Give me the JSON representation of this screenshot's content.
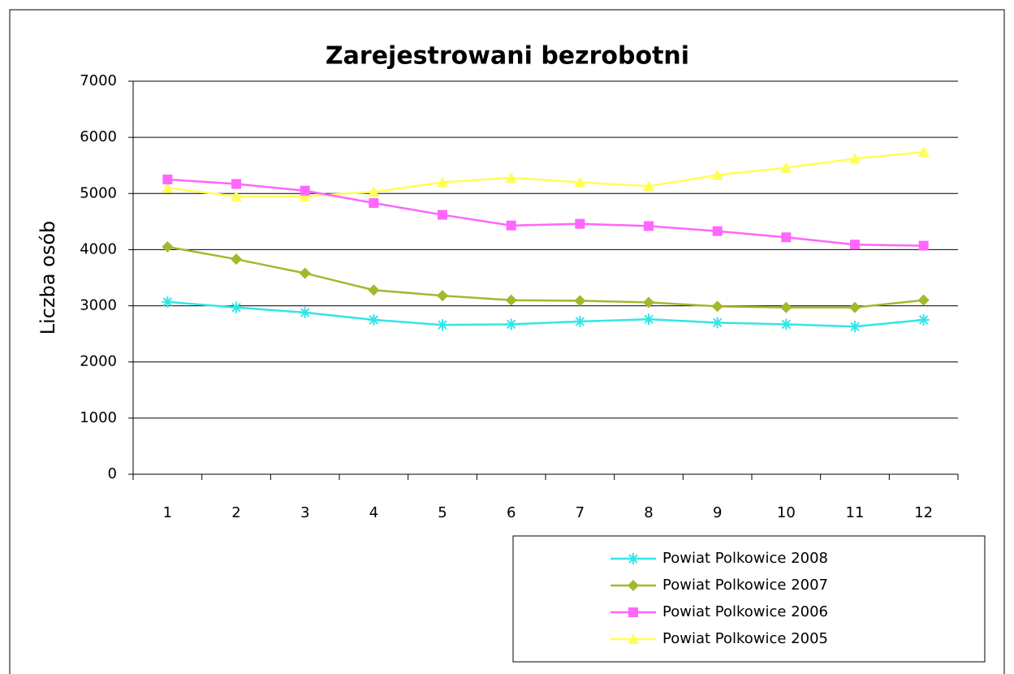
{
  "chart_data": {
    "type": "line",
    "title": "Zarejestrowani bezrobotni",
    "y_label": "Liczba osób",
    "categories": [
      "1",
      "2",
      "3",
      "4",
      "5",
      "6",
      "7",
      "8",
      "9",
      "10",
      "11",
      "12"
    ],
    "series": [
      {
        "name": "Powiat Polkowice 2008",
        "color": "#33e6e6",
        "marker": "star",
        "values": [
          3070,
          2970,
          2880,
          2750,
          2660,
          2670,
          2720,
          2760,
          2700,
          2670,
          2630,
          2750
        ]
      },
      {
        "name": "Powiat Polkowice 2007",
        "color": "#a4b82c",
        "marker": "diamond",
        "values": [
          4050,
          3830,
          3580,
          3280,
          3180,
          3100,
          3090,
          3060,
          2990,
          2970,
          2970,
          3100
        ]
      },
      {
        "name": "Powiat Polkowice 2006",
        "color": "#ff66ff",
        "marker": "square",
        "values": [
          5250,
          5170,
          5050,
          4830,
          4620,
          4430,
          4460,
          4420,
          4330,
          4220,
          4090,
          4070
        ]
      },
      {
        "name": "Powiat Polkowice 2005",
        "color": "#ffff55",
        "marker": "triangle",
        "values": [
          5100,
          4950,
          4950,
          5030,
          5200,
          5280,
          5200,
          5130,
          5330,
          5460,
          5620,
          5740
        ]
      }
    ],
    "ylim": [
      0,
      7000
    ],
    "yticks": [
      0,
      1000,
      2000,
      3000,
      4000,
      5000,
      6000,
      7000
    ],
    "grid": true,
    "legend": "bottom-right"
  }
}
